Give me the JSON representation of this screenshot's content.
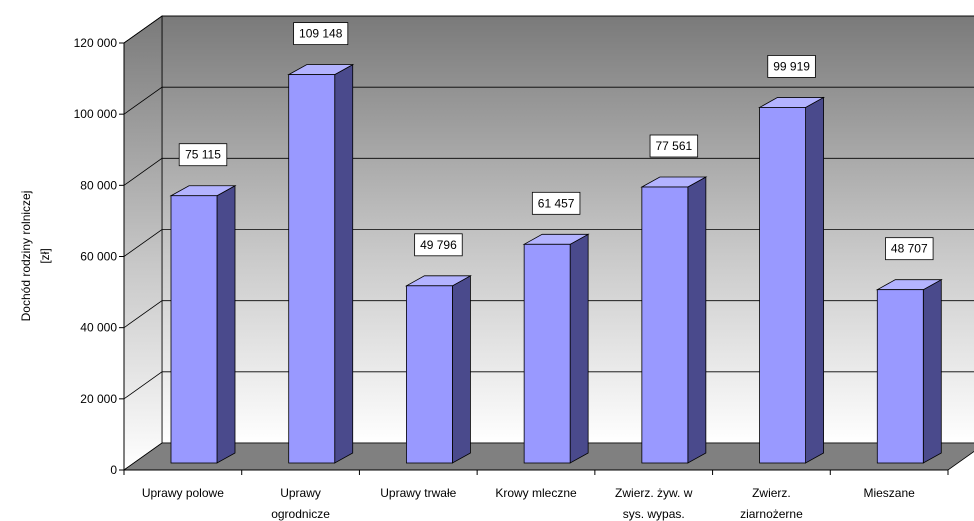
{
  "chart_data": {
    "type": "bar",
    "title": "",
    "xlabel": "",
    "ylabel": [
      "Dochód rodziny rolniczej",
      "[zł]"
    ],
    "ylim": [
      0,
      120000
    ],
    "yticks": [
      0,
      20000,
      40000,
      60000,
      80000,
      100000,
      120000
    ],
    "ytick_labels": [
      "0",
      "20 000",
      "40 000",
      "60 000",
      "80 000",
      "100 000",
      "120 000"
    ],
    "grid": true,
    "legend": "none",
    "three_d": true,
    "categories": [
      [
        "Uprawy polowe"
      ],
      [
        "Uprawy",
        "ogrodnicze"
      ],
      [
        "Uprawy trwałe"
      ],
      [
        "Krowy mleczne"
      ],
      [
        "Zwierz. żyw. w",
        "sys. wypas."
      ],
      [
        "Zwierz.",
        "ziarnożerne"
      ],
      [
        "Mieszane"
      ]
    ],
    "values": [
      75115,
      109148,
      49796,
      61457,
      77561,
      99919,
      48707
    ],
    "data_labels": [
      "75 115",
      "109 148",
      "49 796",
      "61 457",
      "77 561",
      "99 919",
      "48 707"
    ],
    "colors": {
      "bar_front": "#9999ff",
      "bar_top": "#b3b3ff",
      "bar_side": "#4a4a8c",
      "floor": "#808080",
      "wall_top": "#7a7a7a",
      "wall_bottom": "#ffffff"
    }
  }
}
